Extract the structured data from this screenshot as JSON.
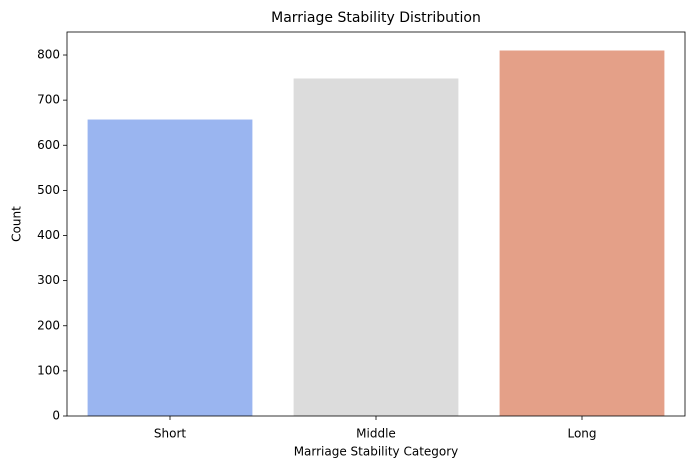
{
  "chart_data": {
    "type": "bar",
    "title": "Marriage Stability Distribution",
    "x_label": "Marriage Stability Category",
    "y_label": "Count",
    "categories": [
      "Short",
      "Middle",
      "Long"
    ],
    "values": [
      657,
      748,
      810
    ],
    "colors": [
      "#9ab5f0",
      "#dcdcdc",
      "#e4a088"
    ],
    "ylim": [
      0,
      851
    ],
    "yticks": [
      0,
      100,
      200,
      300,
      400,
      500,
      600,
      700,
      800
    ],
    "grid": false
  }
}
